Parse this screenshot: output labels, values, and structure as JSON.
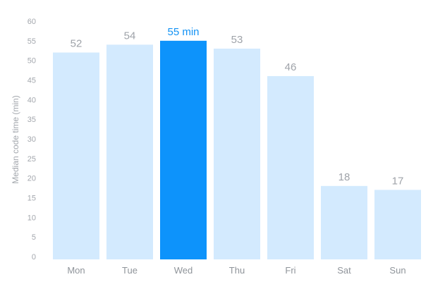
{
  "chart_data": {
    "type": "bar",
    "categories": [
      "Mon",
      "Tue",
      "Wed",
      "Thu",
      "Fri",
      "Sat",
      "Sun"
    ],
    "values": [
      52,
      54,
      55,
      53,
      46,
      18,
      17
    ],
    "value_labels": [
      "52",
      "54",
      "55 min",
      "53",
      "46",
      "18",
      "17"
    ],
    "highlighted_category": "Wed",
    "ylabel": "Median code time (min)",
    "xlabel": "",
    "title": "",
    "ylim": [
      0,
      60
    ],
    "yticks": [
      0,
      5,
      10,
      15,
      20,
      25,
      30,
      35,
      40,
      45,
      50,
      55,
      60
    ],
    "grid": false,
    "legend": "none",
    "colors": {
      "bar": "#d3eafe",
      "bar_highlight": "#0d93fb",
      "label": "#9fa3a9",
      "label_highlight": "#1292f4"
    }
  }
}
